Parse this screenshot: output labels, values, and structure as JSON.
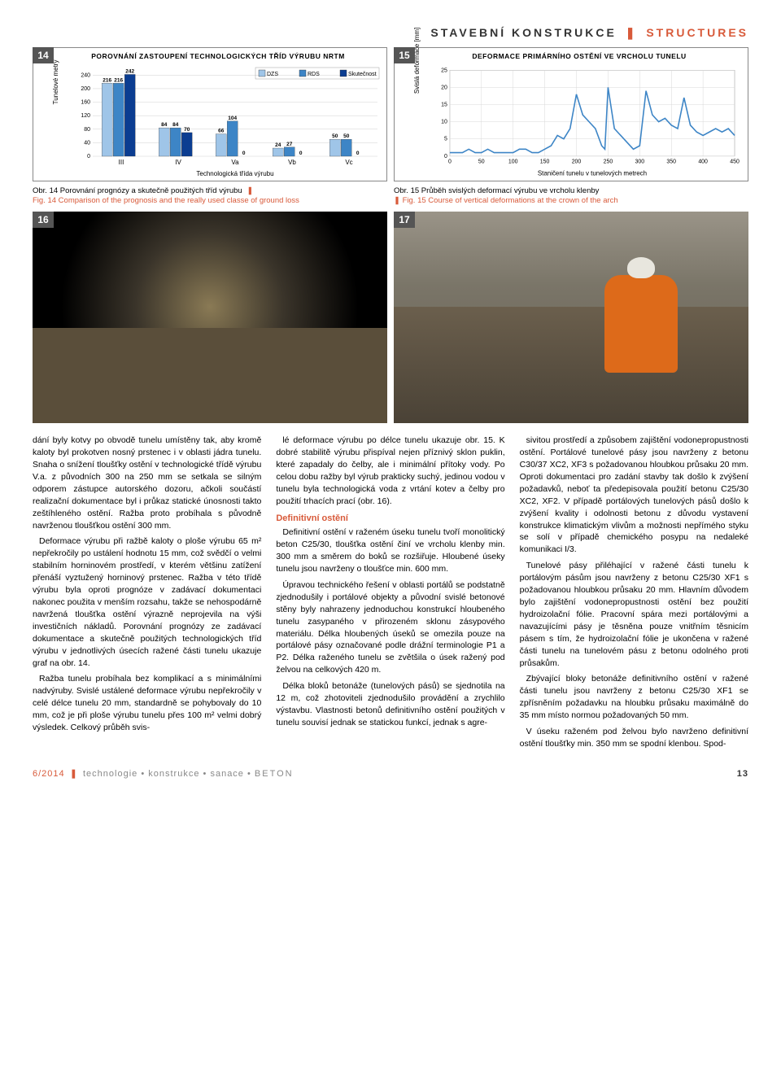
{
  "header": {
    "left": "STAVEBNÍ KONSTRUKCE",
    "right": "STRUCTURES"
  },
  "chart14": {
    "type": "bar",
    "title": "POROVNÁNÍ ZASTOUPENÍ TECHNOLOGICKÝCH TŘÍD VÝRUBU NRTM",
    "ylabel": "Tunelové metry",
    "categories": [
      "III",
      "IV",
      "Va",
      "Vb",
      "Vc"
    ],
    "xaxis_title": "Technologická třída výrubu",
    "legend": [
      "DZS",
      "RDS",
      "Skutečnost"
    ],
    "series": {
      "DZS": [
        216,
        84,
        66,
        24,
        50
      ],
      "RDS": [
        216,
        84,
        104,
        27,
        50
      ],
      "Skutecnost": [
        242,
        70,
        0,
        0,
        0
      ]
    },
    "colors": {
      "DZS": "#9fc5e8",
      "RDS": "#3d85c6",
      "Skutecnost": "#0b3d91"
    },
    "yticks": [
      0,
      40,
      80,
      120,
      160,
      200,
      240
    ],
    "grid_color": "#d0d0d0",
    "label_fontsize": 7
  },
  "chart15": {
    "type": "line",
    "title": "DEFORMACE PRIMÁRNÍHO OSTĚNÍ VE VRCHOLU TUNELU",
    "ylabel": "Svislá deformace [mm]",
    "xaxis_title": "Staničení tunelu v tunelových metrech",
    "xticks": [
      0,
      50,
      100,
      150,
      200,
      250,
      300,
      350,
      400,
      450
    ],
    "yticks": [
      0,
      5,
      10,
      15,
      20,
      25
    ],
    "line_color": "#3d85c6",
    "grid_color": "#d8d8d8",
    "points_x": [
      0,
      10,
      20,
      30,
      40,
      50,
      60,
      70,
      80,
      90,
      100,
      110,
      120,
      130,
      140,
      150,
      160,
      170,
      180,
      190,
      200,
      210,
      220,
      230,
      240,
      245,
      250,
      260,
      270,
      280,
      290,
      300,
      310,
      320,
      330,
      340,
      350,
      360,
      370,
      380,
      390,
      400,
      410,
      420,
      430,
      440,
      450
    ],
    "points_y": [
      1,
      1,
      1,
      2,
      1,
      1,
      2,
      1,
      1,
      1,
      1,
      2,
      2,
      1,
      1,
      2,
      3,
      6,
      5,
      8,
      18,
      12,
      10,
      8,
      3,
      2,
      20,
      8,
      6,
      4,
      2,
      3,
      19,
      12,
      10,
      11,
      9,
      8,
      17,
      9,
      7,
      6,
      7,
      8,
      7,
      8,
      6
    ]
  },
  "captions": {
    "c14_cz": "Obr. 14  Porovnání prognózy a skutečně použitých tříd výrubu",
    "c14_en": "Fig. 14  Comparison of the prognosis and the really used classe of ground loss",
    "c15_cz": "Obr. 15  Průběh svislých deformací výrubu ve vrcholu klenby",
    "c15_en": "Fig. 15  Course of vertical deformations at the crown of the arch"
  },
  "photos": {
    "n16": "16",
    "n17": "17"
  },
  "body": {
    "p1": "dání byly kotvy po obvodě tunelu umístěny tak, aby kromě kaloty byl prokotven nosný prstenec i v oblasti jádra tunelu. Snaha o snížení tloušťky ostění v technologické třídě výrubu V.a. z původních 300 na 250 mm se setkala se silným odporem zástupce autorského dozoru, ačkoli součástí realizační dokumentace byl i průkaz statické únosnosti takto zeštíhleného ostění. Ražba proto probíhala s původně navrženou tloušťkou ostění 300 mm.",
    "p2": "Deformace výrubu při ražbě kaloty o ploše výrubu 65 m² nepřekročily po ustálení hodnotu 15 mm, což svědčí o velmi stabilním horninovém prostředí, v kterém většinu zatížení přenáší vyztužený horninový prstenec. Ražba v této třídě výrubu byla oproti prognóze v zadávací dokumentaci nakonec použita v menším rozsahu, takže se nehospodárně navržená tloušťka ostění výrazně neprojevila na výši investičních nákladů. Porovnání prognózy ze zadávací dokumentace a skutečně použitých technologických tříd výrubu v jednotlivých úsecích ražené části tunelu ukazuje graf na obr. 14.",
    "p3": "Ražba tunelu probíhala bez komplikací a s minimálními nadvýruby. Svislé ustálené deformace výrubu nepřekročily v celé délce tunelu 20 mm, standardně se pohybovaly do 10 mm, což je při ploše výrubu tunelu přes 100 m² velmi dobrý výsledek. Celkový průběh svis-",
    "p4": "lé deformace výrubu po délce tunelu ukazuje obr. 15. K dobré stabilitě výrubu přispíval nejen příznivý sklon puklin, které zapadaly do čelby, ale i minimální přítoky vody. Po celou dobu ražby byl výrub prakticky suchý, jedinou vodou v tunelu byla technologická voda z vrtání kotev a čelby pro použití trhacích prací (obr. 16).",
    "h1": "Definitivní ostění",
    "p5": "Definitivní ostění v raženém úseku tunelu tvoří monolitický beton C25/30, tloušťka ostění činí ve vrcholu klenby min. 300 mm a směrem do boků se rozšiřuje. Hloubené úseky tunelu jsou navrženy o tloušťce min. 600 mm.",
    "p6": "Úpravou technického řešení v oblasti portálů se podstatně zjednodušily i portálové objekty a původní svislé betonové stěny byly nahrazeny jednoduchou konstrukcí hloubeného tunelu zasypaného v přirozeném sklonu zásypového materiálu. Délka hloubených úseků se omezila pouze na portálové pásy označované podle drážní terminologie P1 a P2. Délka raženého tunelu se zvětšila o úsek ražený pod želvou na celkových 420 m.",
    "p7": "Délka bloků betonáže (tunelových pásů) se sjednotila na 12 m, což zhotoviteli zjednodušilo provádění a zrychlilo výstavbu. Vlastnosti betonů definitivního ostění použitých v tunelu souvisí jednak se statickou funkcí, jednak s agre-",
    "p8": "sivitou prostředí a způsobem zajištění vodonepropustnosti ostění. Portálové tunelové pásy jsou navrženy z betonu C30/37 XC2, XF3 s požadovanou hloubkou průsaku 20 mm. Oproti dokumentaci pro zadání stavby tak došlo k zvýšení požadavků, neboť ta předepisovala použití betonu C25/30 XC2, XF2. V případě portálových tunelových pásů došlo k zvýšení kvality i odolnosti betonu z důvodu vystavení konstrukce klimatickým vlivům a možnosti nepřímého styku se solí v případě chemického posypu na nedaleké komunikaci I/3.",
    "p9": "Tunelové pásy přiléhající v ražené části tunelu k portálovým pásům jsou navrženy z betonu C25/30 XF1 s požadovanou hloubkou průsaku 20 mm. Hlavním důvodem bylo zajištění vodonepropustnosti ostění bez použití hydroizolační fólie. Pracovní spára mezi portálovými a navazujícími pásy je těsněna pouze vnitřním těsnicím pásem s tím, že hydroizolační fólie je ukončena v ražené části tunelu na tunelovém pásu z betonu odolného proti průsakům.",
    "p10": "Zbývající bloky betonáže definitivního ostění v ražené části tunelu jsou navrženy z betonu C25/30 XF1 se zpřísněním požadavku na hloubku průsaku maximálně do 35 mm místo normou požadovaných 50 mm.",
    "p11": "V úseku raženém pod želvou bylo navrženo definitivní ostění tloušťky min. 350 mm se spodní klenbou. Spod-"
  },
  "footer": {
    "issue": "6/2014",
    "words": [
      "technologie",
      "konstrukce",
      "sanace",
      "BETON"
    ],
    "page": "13"
  }
}
